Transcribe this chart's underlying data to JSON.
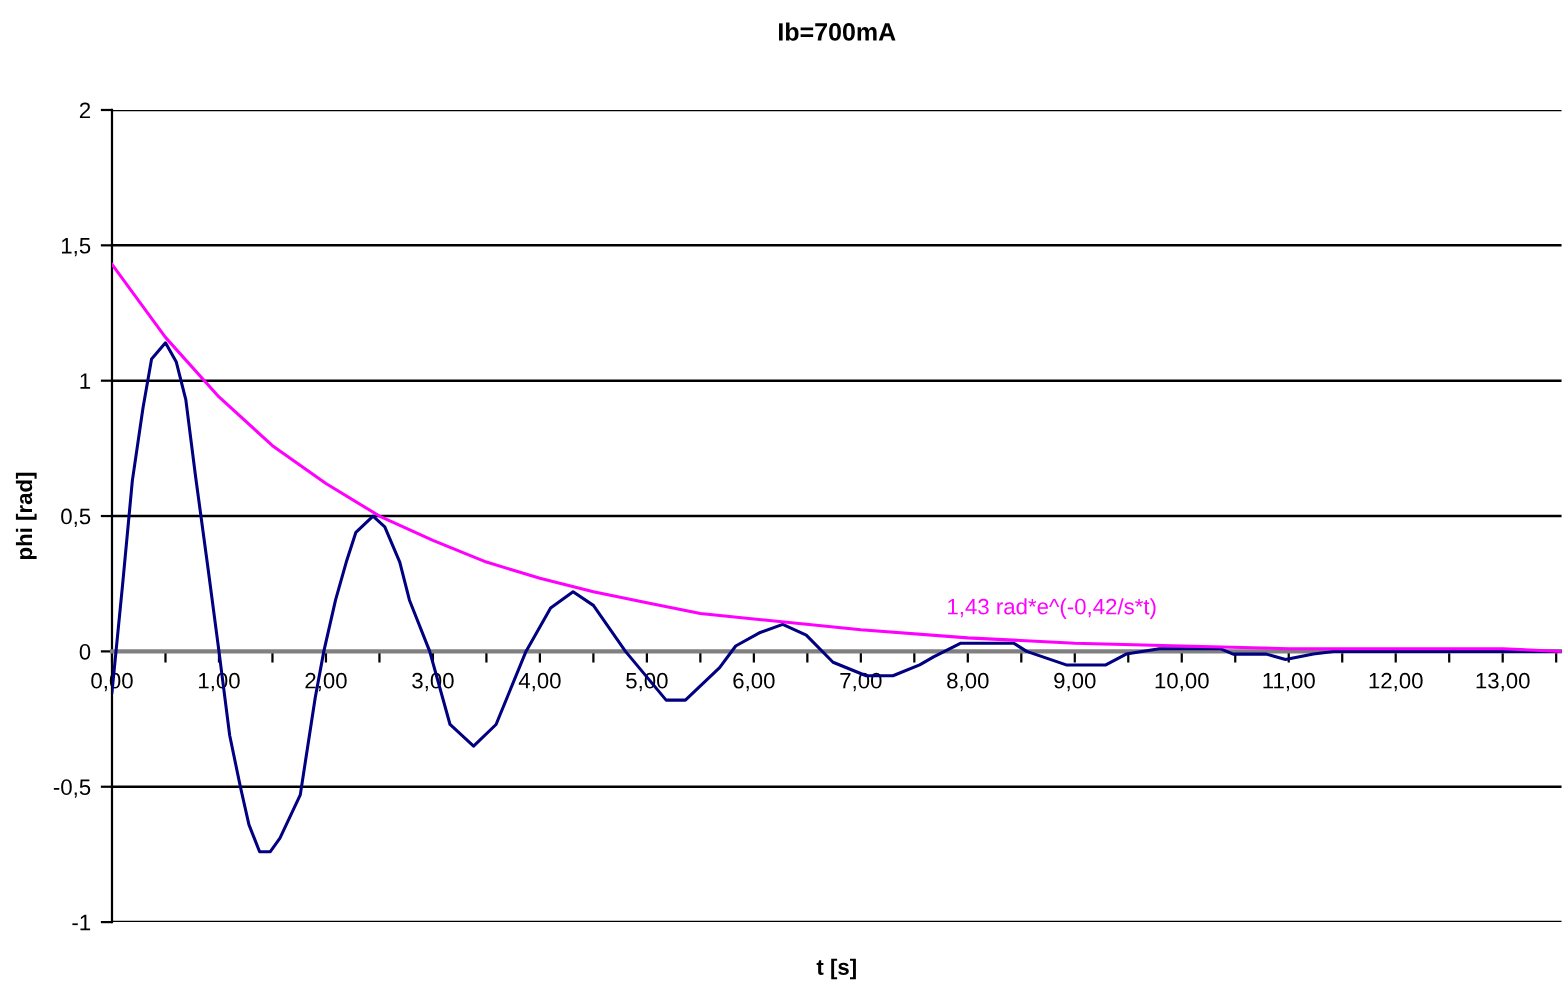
{
  "chart_data": {
    "type": "line",
    "title": "Ib=700mA",
    "xlabel": "t [s]",
    "ylabel": "phi [rad]",
    "xlim": [
      0,
      13.55
    ],
    "ylim": [
      -1,
      2
    ],
    "xticks": [
      {
        "value": 0,
        "label": "0,00"
      },
      {
        "value": 0.5,
        "label": null
      },
      {
        "value": 1,
        "label": "1,00"
      },
      {
        "value": 1.5,
        "label": null
      },
      {
        "value": 2,
        "label": "2,00"
      },
      {
        "value": 2.5,
        "label": null
      },
      {
        "value": 3,
        "label": "3,00"
      },
      {
        "value": 3.5,
        "label": null
      },
      {
        "value": 4,
        "label": "4,00"
      },
      {
        "value": 4.5,
        "label": null
      },
      {
        "value": 5,
        "label": "5,00"
      },
      {
        "value": 5.5,
        "label": null
      },
      {
        "value": 6,
        "label": "6,00"
      },
      {
        "value": 6.5,
        "label": null
      },
      {
        "value": 7,
        "label": "7,00"
      },
      {
        "value": 7.5,
        "label": null
      },
      {
        "value": 8,
        "label": "8,00"
      },
      {
        "value": 8.5,
        "label": null
      },
      {
        "value": 9,
        "label": "9,00"
      },
      {
        "value": 9.5,
        "label": null
      },
      {
        "value": 10,
        "label": "10,00"
      },
      {
        "value": 10.5,
        "label": null
      },
      {
        "value": 11,
        "label": "11,00"
      },
      {
        "value": 11.5,
        "label": null
      },
      {
        "value": 12,
        "label": "12,00"
      },
      {
        "value": 12.5,
        "label": null
      },
      {
        "value": 13,
        "label": "13,00"
      },
      {
        "value": 13.5,
        "label": null
      }
    ],
    "yticks": [
      {
        "value": -1,
        "label": "-1"
      },
      {
        "value": -0.5,
        "label": "-0,5"
      },
      {
        "value": 0,
        "label": "0"
      },
      {
        "value": 0.5,
        "label": "0,5"
      },
      {
        "value": 1,
        "label": "1"
      },
      {
        "value": 1.5,
        "label": "1,5"
      },
      {
        "value": 2,
        "label": "2"
      }
    ],
    "grid": "y",
    "legend": false,
    "marker": "none",
    "line_style": "solid",
    "series": [
      {
        "color": "#000080",
        "x": [
          0,
          0.1,
          0.19,
          0.29,
          0.37,
          0.5,
          0.6,
          0.69,
          0.78,
          0.9,
          1.0,
          1.1,
          1.2,
          1.28,
          1.38,
          1.48,
          1.57,
          1.76,
          1.9,
          1.98,
          2.09,
          2.19,
          2.28,
          2.44,
          2.55,
          2.69,
          2.78,
          2.97,
          3.16,
          3.38,
          3.59,
          3.87,
          4.1,
          4.31,
          4.5,
          4.8,
          5.18,
          5.36,
          5.68,
          5.83,
          6.06,
          6.27,
          6.49,
          6.74,
          7.05,
          7.3,
          7.55,
          7.68,
          7.93,
          8.43,
          8.55,
          8.92,
          9.29,
          9.48,
          9.79,
          10.36,
          10.48,
          10.79,
          10.97,
          11.23,
          11.42,
          12.0,
          13.0,
          13.55
        ],
        "values": [
          -0.15,
          0.25,
          0.63,
          0.9,
          1.08,
          1.14,
          1.07,
          0.93,
          0.65,
          0.3,
          0,
          -0.31,
          -0.5,
          -0.64,
          -0.74,
          -0.74,
          -0.69,
          -0.53,
          -0.17,
          0,
          0.19,
          0.33,
          0.44,
          0.5,
          0.46,
          0.33,
          0.19,
          0,
          -0.27,
          -0.35,
          -0.27,
          0,
          0.16,
          0.22,
          0.17,
          0,
          -0.18,
          -0.18,
          -0.06,
          0.02,
          0.07,
          0.1,
          0.06,
          -0.04,
          -0.09,
          -0.09,
          -0.05,
          -0.02,
          0.03,
          0.03,
          0,
          -0.05,
          -0.05,
          -0.01,
          0.01,
          0.01,
          -0.01,
          -0.01,
          -0.03,
          -0.01,
          0,
          0,
          0,
          0
        ]
      },
      {
        "name": "1,43 rad*e^(-0,42/s*t)",
        "color": "#ff00ff",
        "x": [
          0,
          0.5,
          1,
          1.5,
          2,
          2.5,
          3,
          3.5,
          4,
          4.5,
          5,
          5.5,
          6,
          7,
          8,
          9,
          10,
          11,
          12,
          13,
          13.55
        ],
        "values": [
          1.43,
          1.16,
          0.94,
          0.76,
          0.62,
          0.5,
          0.41,
          0.33,
          0.27,
          0.22,
          0.18,
          0.14,
          0.12,
          0.08,
          0.05,
          0.03,
          0.02,
          0.01,
          0.01,
          0.01,
          0.0
        ]
      }
    ]
  }
}
